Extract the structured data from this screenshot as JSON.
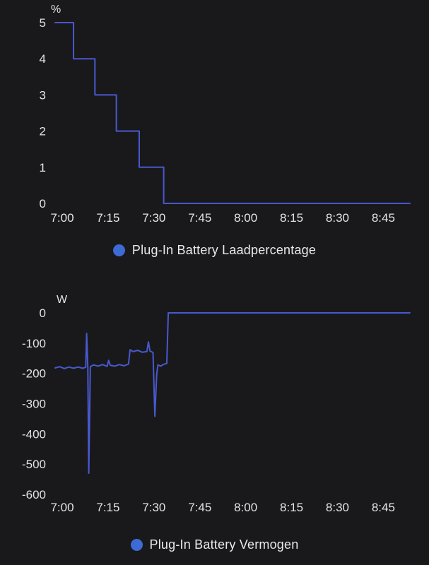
{
  "page": {
    "background": "#19191b",
    "tick_text_color": "#e3e4e6",
    "unit_text_color": "#e3e4e6"
  },
  "chart_data": [
    {
      "type": "line",
      "title": "Plug-In Battery Laadpercentage",
      "unit": "%",
      "line_color": "#4859cf",
      "legend_dot_color": "#3d6bd5",
      "x_ticks": [
        "7:00",
        "7:15",
        "7:30",
        "7:45",
        "8:00",
        "8:15",
        "8:30",
        "8:45"
      ],
      "x_tick_minutes": [
        0,
        15,
        30,
        45,
        60,
        75,
        90,
        105
      ],
      "x_range_minutes": [
        0,
        116
      ],
      "y_ticks": [
        5,
        4,
        3,
        2,
        1,
        0
      ],
      "ylim": [
        0,
        5
      ],
      "grid": false,
      "legend_position": "bottom",
      "step": true,
      "points": [
        [
          0,
          5
        ],
        [
          6,
          5
        ],
        [
          6,
          4
        ],
        [
          13,
          4
        ],
        [
          13,
          3
        ],
        [
          20,
          3
        ],
        [
          20,
          2
        ],
        [
          27.5,
          2
        ],
        [
          27.5,
          1
        ],
        [
          35.5,
          1
        ],
        [
          35.5,
          0
        ],
        [
          116,
          0
        ]
      ]
    },
    {
      "type": "line",
      "title": "Plug-In Battery Vermogen",
      "unit": "W",
      "line_color": "#4859cf",
      "legend_dot_color": "#3d6bd5",
      "x_ticks": [
        "7:00",
        "7:15",
        "7:30",
        "7:45",
        "8:00",
        "8:15",
        "8:30",
        "8:45"
      ],
      "x_tick_minutes": [
        0,
        15,
        30,
        45,
        60,
        75,
        90,
        105
      ],
      "x_range_minutes": [
        0,
        116
      ],
      "y_ticks": [
        0,
        -100,
        -200,
        -300,
        -400,
        -500,
        -600
      ],
      "ylim": [
        -600,
        0
      ],
      "grid": false,
      "legend_position": "bottom",
      "step": false,
      "points": [
        [
          0,
          -182
        ],
        [
          1.5,
          -178
        ],
        [
          3,
          -184
        ],
        [
          4.5,
          -179
        ],
        [
          6,
          -183
        ],
        [
          7.5,
          -179
        ],
        [
          9,
          -183
        ],
        [
          10,
          -180
        ],
        [
          10.3,
          -68
        ],
        [
          10.7,
          -185
        ],
        [
          11,
          -530
        ],
        [
          11.5,
          -178
        ],
        [
          12.5,
          -172
        ],
        [
          14,
          -176
        ],
        [
          15.5,
          -171
        ],
        [
          17,
          -177
        ],
        [
          17.5,
          -157
        ],
        [
          18,
          -173
        ],
        [
          19.5,
          -176
        ],
        [
          21,
          -171
        ],
        [
          22.5,
          -175
        ],
        [
          24,
          -169
        ],
        [
          24.5,
          -122
        ],
        [
          25.5,
          -128
        ],
        [
          27,
          -124
        ],
        [
          28.5,
          -130
        ],
        [
          30,
          -128
        ],
        [
          30.5,
          -96
        ],
        [
          31,
          -126
        ],
        [
          32,
          -131
        ],
        [
          32.6,
          -342
        ],
        [
          33.2,
          -205
        ],
        [
          33.6,
          -172
        ],
        [
          34.5,
          -176
        ],
        [
          35.5,
          -170
        ],
        [
          36.5,
          -167
        ],
        [
          37,
          0
        ],
        [
          116,
          0
        ]
      ]
    }
  ]
}
